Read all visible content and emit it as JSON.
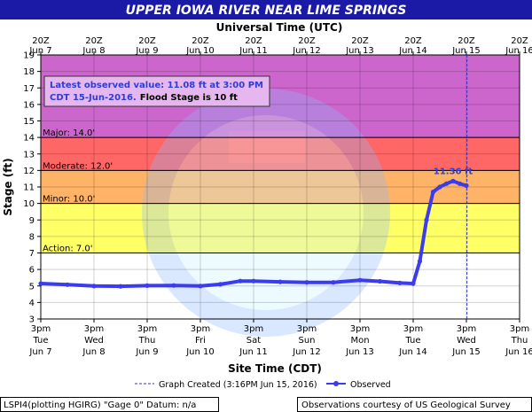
{
  "header": {
    "title": "UPPER IOWA RIVER NEAR LIME SPRINGS"
  },
  "colors": {
    "banner": "#1a1aa6",
    "observed": "#3b3bef",
    "action": "#ffff66",
    "minor": "#ffb366",
    "moderate": "#ff6666",
    "major": "#cc66cc",
    "above_major": "#e98ee9"
  },
  "annotation": {
    "line1": "Latest observed value: 11.08 ft at 3:00 PM",
    "line2_blue": "CDT 15-Jun-2016.",
    "line2_black": "Flood Stage is 10 ft"
  },
  "footer": {
    "left": "LSPI4(plotting HGIRG) \"Gage 0\" Datum: n/a",
    "right": "Observations courtesy of US Geological Survey"
  },
  "chart_data": {
    "type": "line",
    "title": "UPPER IOWA RIVER NEAR LIME SPRINGS",
    "xlabel": "Site Time (CDT)",
    "x2label": "Universal Time (UTC)",
    "ylabel": "Stage (ft)",
    "ylim": [
      3,
      19
    ],
    "yticks": [
      3,
      4,
      5,
      6,
      7,
      8,
      9,
      10,
      11,
      12,
      13,
      14,
      15,
      16,
      17,
      18,
      19
    ],
    "grid": true,
    "xlim": [
      "2016-06-07 15:00",
      "2016-06-16 15:00"
    ],
    "x_ticks_bottom": [
      {
        "time": "3pm",
        "day": "Tue",
        "date": "Jun 7"
      },
      {
        "time": "3pm",
        "day": "Wed",
        "date": "Jun 8"
      },
      {
        "time": "3pm",
        "day": "Thu",
        "date": "Jun 9"
      },
      {
        "time": "3pm",
        "day": "Fri",
        "date": "Jun 10"
      },
      {
        "time": "3pm",
        "day": "Sat",
        "date": "Jun 11"
      },
      {
        "time": "3pm",
        "day": "Sun",
        "date": "Jun 12"
      },
      {
        "time": "3pm",
        "day": "Mon",
        "date": "Jun 13"
      },
      {
        "time": "3pm",
        "day": "Tue",
        "date": "Jun 14"
      },
      {
        "time": "3pm",
        "day": "Wed",
        "date": "Jun 15"
      },
      {
        "time": "3pm",
        "day": "Thu",
        "date": "Jun 16"
      }
    ],
    "x_ticks_top": [
      {
        "time": "20Z",
        "date": "Jun 7"
      },
      {
        "time": "20Z",
        "date": "Jun 8"
      },
      {
        "time": "20Z",
        "date": "Jun 9"
      },
      {
        "time": "20Z",
        "date": "Jun 10"
      },
      {
        "time": "20Z",
        "date": "Jun 11"
      },
      {
        "time": "20Z",
        "date": "Jun 12"
      },
      {
        "time": "20Z",
        "date": "Jun 13"
      },
      {
        "time": "20Z",
        "date": "Jun 14"
      },
      {
        "time": "20Z",
        "date": "Jun 15"
      },
      {
        "time": "20Z",
        "date": "Jun 16"
      }
    ],
    "flood_categories": [
      {
        "name": "Action",
        "label": "Action: 7.0'",
        "value": 7.0
      },
      {
        "name": "Minor",
        "label": "Minor: 10.0'",
        "value": 10.0
      },
      {
        "name": "Moderate",
        "label": "Moderate: 12.0'",
        "value": 12.0
      },
      {
        "name": "Major",
        "label": "Major: 14.0'",
        "value": 14.0
      }
    ],
    "legend": [
      {
        "name": "Graph Created (3:16PM Jun 15, 2016)",
        "style": "dashed"
      },
      {
        "name": "Observed",
        "style": "line-marker"
      }
    ],
    "legend_placement": "bottom",
    "graph_created": "2016-06-15 15:16",
    "peak_label": "11.36 ft",
    "peak": {
      "x": "2016-06-15 09:00",
      "y": 11.36
    },
    "series": [
      {
        "name": "Observed",
        "x": [
          "2016-06-07 15:00",
          "2016-06-08 03:00",
          "2016-06-08 15:00",
          "2016-06-09 03:00",
          "2016-06-09 15:00",
          "2016-06-10 03:00",
          "2016-06-10 15:00",
          "2016-06-11 00:00",
          "2016-06-11 09:00",
          "2016-06-11 15:00",
          "2016-06-12 03:00",
          "2016-06-12 15:00",
          "2016-06-13 03:00",
          "2016-06-13 15:00",
          "2016-06-14 00:00",
          "2016-06-14 09:00",
          "2016-06-14 15:00",
          "2016-06-14 18:00",
          "2016-06-14 21:00",
          "2016-06-15 00:00",
          "2016-06-15 03:00",
          "2016-06-15 06:00",
          "2016-06-15 09:00",
          "2016-06-15 12:00",
          "2016-06-15 15:00"
        ],
        "y": [
          5.15,
          5.08,
          5.0,
          4.98,
          5.02,
          5.03,
          5.0,
          5.1,
          5.3,
          5.3,
          5.25,
          5.22,
          5.22,
          5.35,
          5.28,
          5.18,
          5.15,
          6.5,
          9.0,
          10.7,
          11.0,
          11.2,
          11.36,
          11.2,
          11.08
        ]
      }
    ]
  }
}
